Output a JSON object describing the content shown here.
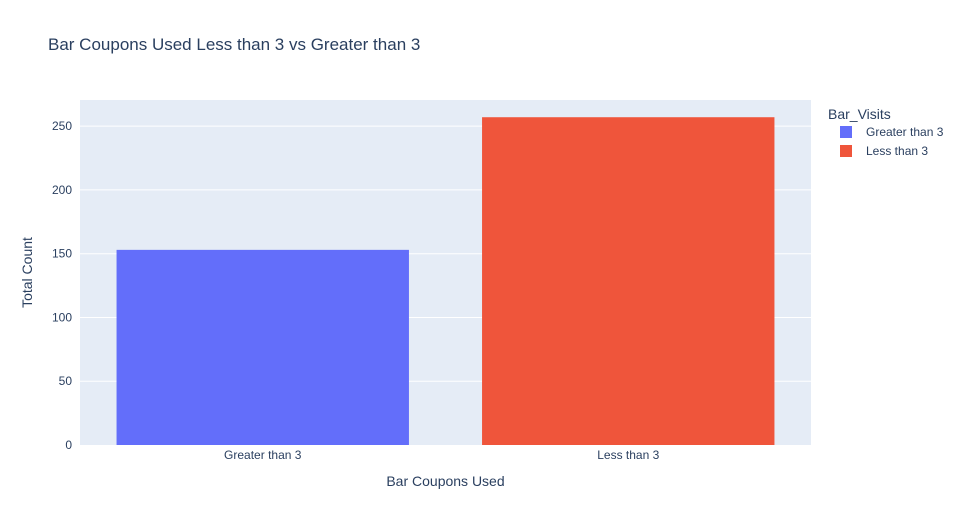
{
  "chart_data": {
    "type": "bar",
    "title": "Bar Coupons Used Less than 3 vs Greater than 3",
    "xlabel": "Bar Coupons Used",
    "ylabel": "Total Count",
    "categories": [
      "Greater than 3",
      "Less than 3"
    ],
    "series": [
      {
        "name": "Greater than 3",
        "category": "Greater than 3",
        "value": 153,
        "color": "#636efa"
      },
      {
        "name": "Less than 3",
        "category": "Less than 3",
        "value": 257,
        "color": "#ef553b"
      }
    ],
    "ylim": [
      0,
      270.5
    ],
    "yticks": [
      0,
      50,
      100,
      150,
      200,
      250
    ],
    "ytick_labels": [
      "0",
      "50",
      "100",
      "150",
      "200",
      "250"
    ],
    "grid": true,
    "legend": {
      "title": "Bar_Visits",
      "placement": "top-right",
      "items": [
        "Greater than 3",
        "Less than 3"
      ]
    },
    "plot_background": "#e5ecf6",
    "gridline_color": "#ffffff",
    "text_color": "#2a3f5f"
  }
}
